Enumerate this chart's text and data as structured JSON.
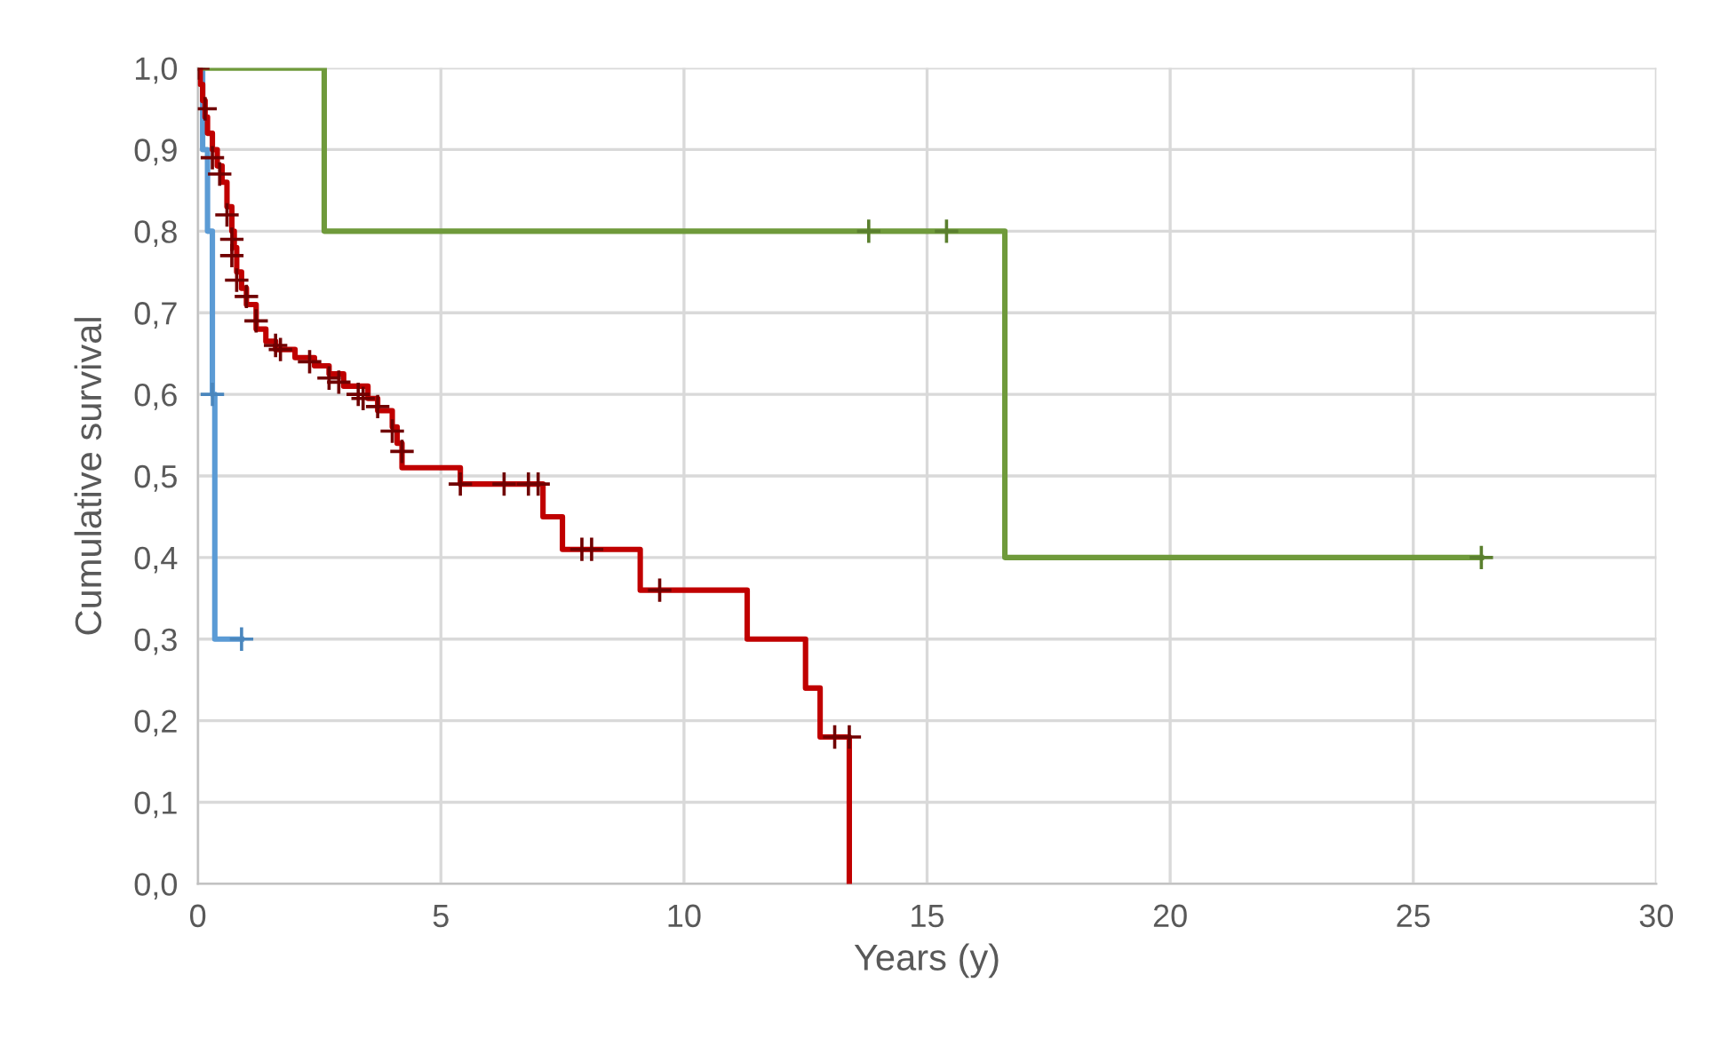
{
  "chart_data": {
    "type": "step",
    "xlabel": "Years (y)",
    "ylabel": "Cumulative survival",
    "xlim": [
      0,
      30
    ],
    "xticks": [
      0,
      5,
      10,
      15,
      20,
      25,
      30
    ],
    "ylim": [
      0,
      1.0
    ],
    "yticks": [
      {
        "value": 0,
        "label": "0,0"
      },
      {
        "value": 0.1,
        "label": "0,1"
      },
      {
        "value": 0.2,
        "label": "0,2"
      },
      {
        "value": 0.3,
        "label": "0,3"
      },
      {
        "value": 0.4,
        "label": "0,4"
      },
      {
        "value": 0.5,
        "label": "0,5"
      },
      {
        "value": 0.6,
        "label": "0,6"
      },
      {
        "value": 0.7,
        "label": "0,7"
      },
      {
        "value": 0.8,
        "label": "0,8"
      },
      {
        "value": 0.9,
        "label": "0,9"
      },
      {
        "value": 1.0,
        "label": "1,0"
      }
    ],
    "grid": true,
    "series": [
      {
        "color": "#5b9bd5",
        "marker": "none",
        "x": [
          0,
          0.1,
          0.2,
          0.3,
          0.35,
          0.9
        ],
        "values": [
          1.0,
          0.9,
          0.8,
          0.6,
          0.3,
          0.3
        ]
      },
      {
        "color": "#6f9a3b",
        "marker": "none",
        "x": [
          0,
          2.6,
          16.6,
          26.4
        ],
        "values": [
          1.0,
          0.8,
          0.4,
          0.4
        ]
      },
      {
        "color": "#c00000",
        "marker": "none",
        "x": [
          0,
          0.05,
          0.1,
          0.15,
          0.2,
          0.3,
          0.4,
          0.5,
          0.6,
          0.7,
          0.75,
          0.8,
          0.9,
          1.0,
          1.2,
          1.4,
          1.6,
          2.0,
          2.4,
          2.7,
          3.0,
          3.5,
          3.7,
          4.0,
          4.1,
          4.2,
          5.4,
          7.1,
          7.5,
          9.1,
          11.3,
          12.5,
          12.8,
          13.4
        ],
        "values": [
          1.0,
          0.98,
          0.96,
          0.94,
          0.92,
          0.9,
          0.88,
          0.86,
          0.83,
          0.8,
          0.78,
          0.75,
          0.73,
          0.71,
          0.68,
          0.665,
          0.655,
          0.645,
          0.635,
          0.625,
          0.61,
          0.595,
          0.58,
          0.56,
          0.54,
          0.51,
          0.49,
          0.45,
          0.41,
          0.36,
          0.3,
          0.24,
          0.18,
          0.0
        ]
      },
      {
        "type": "scatter",
        "color": "#4a86bd",
        "marker": "cross",
        "x": [
          0.3,
          0.9
        ],
        "values": [
          0.6,
          0.3
        ]
      },
      {
        "type": "scatter",
        "color": "#5a7f2e",
        "marker": "cross",
        "x": [
          13.8,
          15.4,
          26.4
        ],
        "values": [
          0.8,
          0.8,
          0.4
        ]
      },
      {
        "type": "scatter",
        "color": "#700000",
        "marker": "cross",
        "x": [
          0,
          0.15,
          0.3,
          0.45,
          0.6,
          0.7,
          0.7,
          0.8,
          1.0,
          1.2,
          1.6,
          1.7,
          2.3,
          2.7,
          2.9,
          3.3,
          3.4,
          3.7,
          4.0,
          4.2,
          5.4,
          6.3,
          6.8,
          7.0,
          7.9,
          8.1,
          9.5,
          13.1,
          13.4
        ],
        "values": [
          1.0,
          0.95,
          0.89,
          0.87,
          0.82,
          0.79,
          0.77,
          0.74,
          0.72,
          0.69,
          0.66,
          0.655,
          0.64,
          0.62,
          0.615,
          0.6,
          0.595,
          0.585,
          0.555,
          0.53,
          0.49,
          0.49,
          0.49,
          0.49,
          0.41,
          0.41,
          0.36,
          0.18,
          0.18
        ]
      }
    ]
  }
}
